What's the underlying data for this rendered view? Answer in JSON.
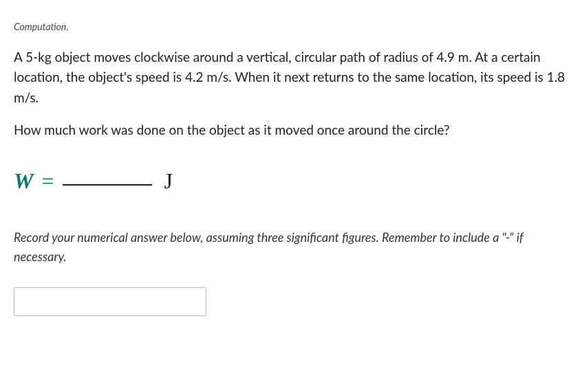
{
  "label": "Computation.",
  "question": {
    "para1": "A 5-kg object moves clockwise around a vertical, circular path of radius of 4.9 m. At a certain location, the object's speed is 4.2 m/s. When it next returns to the same location, its speed is 1.8 m/s.",
    "para2": "How much work was done on the object as it moved once around the circle?"
  },
  "equation": {
    "symbol": "W",
    "equals": "=",
    "unit": "J"
  },
  "instruction": "Record your numerical answer below, assuming three significant figures. Remember to include a \"-\" if necessary.",
  "answer_value": "",
  "colors": {
    "accent": "#0b7a6a",
    "text": "#222222",
    "background": "#ffffff",
    "border": "#bbbbbb"
  },
  "typography": {
    "body_family": "Segoe UI, Lato, sans-serif",
    "math_family": "Times New Roman, serif",
    "label_fontsize": 14,
    "question_fontsize": 19,
    "equation_fontsize": 32,
    "instruction_fontsize": 18
  }
}
